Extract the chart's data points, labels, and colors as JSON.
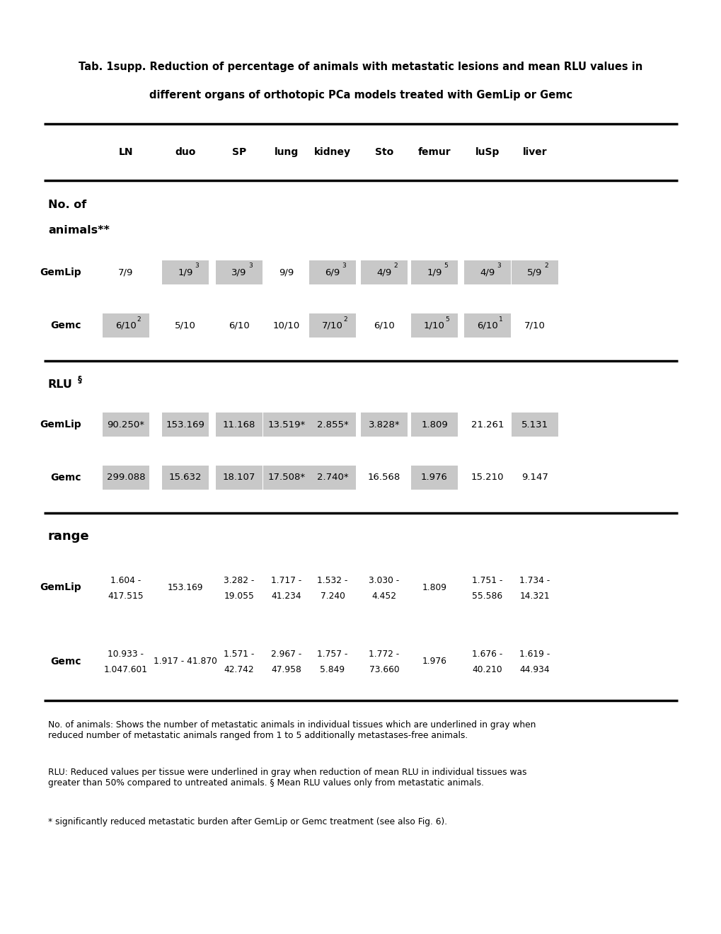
{
  "title_line1": "Tab. 1supp. Reduction of percentage of animals with metastatic lesions and mean RLU values in",
  "title_line2": "different organs of orthotopic PCa models treated with GemLip or Gemc",
  "columns": [
    "LN",
    "duo",
    "SP",
    "lung",
    "kidney",
    "Sto",
    "femur",
    "luSp",
    "liver"
  ],
  "gemlip_animals_raw": [
    "7/9",
    "1/9(3)",
    "3/9(3)",
    "9/9",
    "6/9(3)",
    "4/9(2)",
    "1/9(5)",
    "4/9(3)",
    "5/9(2)"
  ],
  "gemc_animals_raw": [
    "6/10(2)",
    "5/10",
    "6/10",
    "10/10",
    "7/10(2)",
    "6/10",
    "1/10(5)",
    "6/10(1)",
    "7/10"
  ],
  "gemlip_animals_gray": [
    false,
    true,
    true,
    false,
    true,
    true,
    true,
    true,
    true
  ],
  "gemc_animals_gray": [
    true,
    false,
    false,
    false,
    true,
    false,
    true,
    true,
    false
  ],
  "gemlip_rlu": [
    "90.250*",
    "153.169",
    "11.168",
    "13.519*",
    "2.855*",
    "3.828*",
    "1.809",
    "21.261",
    "5.131"
  ],
  "gemc_rlu": [
    "299.088",
    "15.632",
    "18.107",
    "17.508*",
    "2.740*",
    "16.568",
    "1.976",
    "15.210",
    "9.147"
  ],
  "gemlip_rlu_gray": [
    true,
    true,
    true,
    true,
    true,
    true,
    true,
    false,
    true
  ],
  "gemc_rlu_gray": [
    true,
    true,
    true,
    true,
    true,
    false,
    true,
    false,
    false
  ],
  "gemlip_range": [
    "1.604 -\n417.515",
    "153.169",
    "3.282 -\n19.055",
    "1.717 -\n41.234",
    "1.532 -\n7.240",
    "3.030 -\n4.452",
    "1.809",
    "1.751 -\n55.586",
    "1.734 -\n14.321"
  ],
  "gemc_range": [
    "10.933 -\n1.047.601",
    "1.917 - 41.870",
    "1.571 -\n42.742",
    "2.967 -\n47.958",
    "1.757 -\n5.849",
    "1.772 -\n73.660",
    "1.976",
    "1.676 -\n40.210",
    "1.619 -\n44.934"
  ],
  "footnote1": "No. of animals: Shows the number of metastatic animals in individual tissues which are underlined in gray when\nreduced number of metastatic animals ranged from 1 to 5 additionally metastases-free animals.",
  "footnote2": "RLU: Reduced values per tissue were underlined in gray when reduction of mean RLU in individual tissues was\ngreater than 50% compared to untreated animals. § Mean RLU values only from metastatic animals.",
  "footnote3": "* significantly reduced metastatic burden after GemLip or Gemc treatment (see also Fig. 6).",
  "gray_color": "#c8c8c8",
  "bg_color": "#ffffff"
}
